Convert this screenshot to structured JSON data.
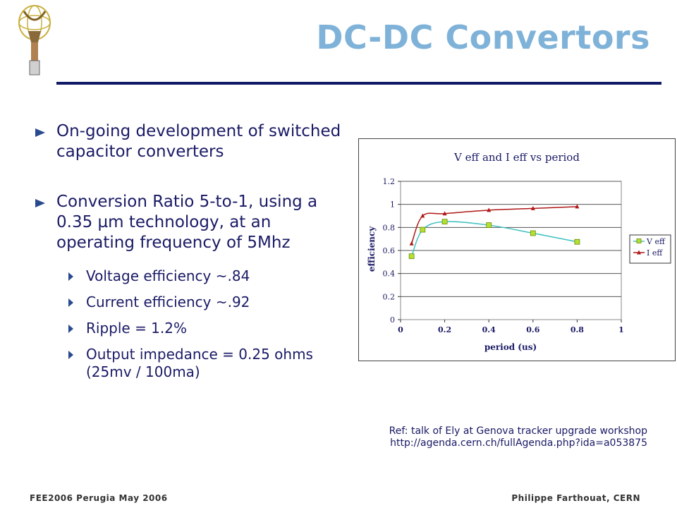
{
  "slide": {
    "title": "DC-DC Convertors",
    "bullets": [
      "On-going development of switched capacitor converters",
      "Conversion Ratio 5-to-1, using a 0.35 µm technology, at an operating frequency of 5Mhz"
    ],
    "sub_bullets": [
      "Voltage efficiency ~.84",
      "Current efficiency ~.92",
      "Ripple = 1.2%",
      "Output impedance = 0.25 ohms (25mv / 100ma)"
    ],
    "ref_line1": "Ref: talk of Ely at Genova tracker upgrade workshop",
    "ref_line2": "http://agenda.cern.ch/fullAgenda.php?ida=a053875",
    "footer_left": "FEE2006 Perugia May 2006",
    "footer_right": "Philippe Farthouat, CERN"
  },
  "colors": {
    "title": "#7fb2d8",
    "text": "#1a1a66",
    "rule": "#111a66",
    "veff": "#b4e030",
    "veff_line": "#40c0c0",
    "ieff": "#b01818"
  },
  "chart_data": {
    "type": "line",
    "title": "V eff and I eff vs period",
    "xlabel": "period (us)",
    "ylabel": "efficiency",
    "xlim": [
      0,
      1
    ],
    "ylim": [
      0,
      1.2
    ],
    "x_ticks": [
      "0",
      "0.2",
      "0.4",
      "0.6",
      "0.8",
      "1"
    ],
    "y_ticks": [
      "0",
      "0.2",
      "0.4",
      "0.6",
      "0.8",
      "1",
      "1.2"
    ],
    "legend": "right",
    "grid": "horizontal",
    "series": [
      {
        "name": "V eff",
        "x": [
          0.05,
          0.1,
          0.2,
          0.4,
          0.6,
          0.8
        ],
        "y": [
          0.55,
          0.78,
          0.85,
          0.82,
          0.75,
          0.675
        ]
      },
      {
        "name": "I eff",
        "x": [
          0.05,
          0.1,
          0.2,
          0.4,
          0.6,
          0.8
        ],
        "y": [
          0.66,
          0.9,
          0.92,
          0.95,
          0.965,
          0.98
        ]
      }
    ]
  }
}
